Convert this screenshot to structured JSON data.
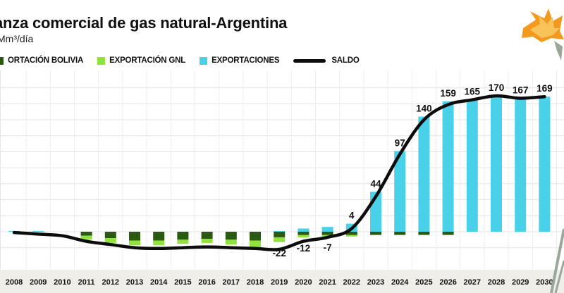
{
  "header": {
    "title": "anza comercial de gas natural-Argentina",
    "subtitle": "Mm³/día"
  },
  "legend": [
    {
      "label": "ORTACIÓN BOLIVIA",
      "color": "#2a5a12",
      "kind": "box"
    },
    {
      "label": "EXPORTACIÓN GNL",
      "color": "#8fe33a",
      "kind": "box"
    },
    {
      "label": "EXPORTACIONES",
      "color": "#49d1ea",
      "kind": "box"
    },
    {
      "label": "SALDO",
      "color": "#0c0c0c",
      "kind": "line"
    }
  ],
  "colors": {
    "importacion_bolivia": "#2a5a12",
    "exportacion_gnl": "#8fe33a",
    "exportaciones": "#49d1ea",
    "saldo": "#0c0c0c",
    "axis_band": "#f0eee8"
  },
  "chart_data": {
    "type": "bar",
    "ylim": [
      -30,
      180
    ],
    "grid": true,
    "legend_position": "top-left",
    "categories": [
      "2008",
      "2009",
      "2010",
      "2011",
      "2012",
      "2013",
      "2014",
      "2015",
      "2016",
      "2017",
      "2018",
      "2019",
      "2020",
      "2021",
      "2022",
      "2023",
      "2024",
      "2025",
      "2026",
      "2027",
      "2028",
      "2029",
      "2030"
    ],
    "series": [
      {
        "key": "bolivia",
        "values": [
          0,
          0,
          0,
          -5,
          -8,
          -11,
          -11,
          -10,
          -9,
          -10,
          -11,
          -7,
          -4,
          -4,
          -4,
          -4,
          -4,
          -4,
          -4,
          0,
          0,
          0,
          0
        ]
      },
      {
        "key": "gnl",
        "values": [
          0,
          0,
          0,
          -5,
          -6,
          -6,
          -6,
          -5,
          -5,
          -6,
          -8,
          -6,
          -3,
          -2,
          -2,
          0,
          0,
          0,
          0,
          0,
          0,
          0,
          0
        ]
      },
      {
        "key": "exportaciones",
        "values": [
          1,
          1,
          0,
          0,
          0,
          0,
          0,
          0,
          0,
          0,
          0,
          1,
          4,
          6,
          10,
          50,
          101,
          144,
          163,
          165,
          170,
          167,
          169
        ]
      },
      {
        "key": "saldo",
        "values": [
          -1,
          -3,
          -5,
          -12,
          -16,
          -20,
          -21,
          -20,
          -19,
          -20,
          -21,
          -22,
          -12,
          -7,
          4,
          44,
          97,
          140,
          159,
          165,
          170,
          167,
          169
        ]
      }
    ],
    "data_labels": [
      {
        "x": "2019",
        "value": -22,
        "text": "-22"
      },
      {
        "x": "2020",
        "value": -12,
        "text": "-12"
      },
      {
        "x": "2021",
        "value": -7,
        "text": "-7"
      },
      {
        "x": "2022",
        "value": 4,
        "text": "4"
      },
      {
        "x": "2023",
        "value": 44,
        "text": "44"
      },
      {
        "x": "2024",
        "value": 97,
        "text": "97"
      },
      {
        "x": "2025",
        "value": 140,
        "text": "140"
      },
      {
        "x": "2026",
        "value": 159,
        "text": "159"
      },
      {
        "x": "2027",
        "value": 165,
        "text": "165"
      },
      {
        "x": "2028",
        "value": 170,
        "text": "170"
      },
      {
        "x": "2029",
        "value": 167,
        "text": "167"
      },
      {
        "x": "2030",
        "value": 169,
        "text": "169"
      }
    ]
  }
}
